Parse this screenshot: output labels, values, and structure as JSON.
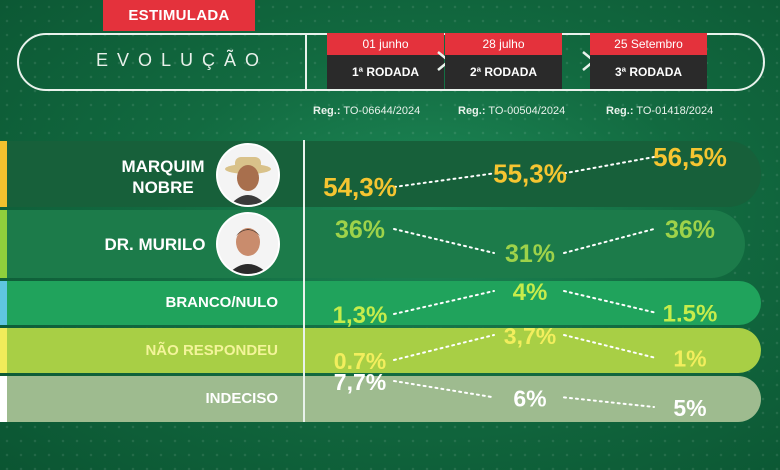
{
  "header": {
    "tag": "ESTIMULADA",
    "title": "EVOLUÇÃO"
  },
  "rounds": [
    {
      "date": "01 junho",
      "name": "1ª RODADA",
      "reg_label": "Reg.:",
      "reg_code": "TO-06644/2024"
    },
    {
      "date": "28 julho",
      "name": "2ª RODADA",
      "reg_label": "Reg.:",
      "reg_code": "TO-00504/2024"
    },
    {
      "date": "25 Setembro",
      "name": "3ª RODADA",
      "reg_label": "Reg.:",
      "reg_code": "TO-01418/2024"
    }
  ],
  "colors": {
    "tag": "#e4323c",
    "round_name_bg": "#2a2a2a",
    "marquim_value": "#f5c531",
    "murilo_value": "#9ed24a",
    "branco_value": "#c6ec4b",
    "naoresp_value": "#f2ee5d",
    "indeciso_value": "#ffffff"
  },
  "chart_data": {
    "type": "line",
    "x": [
      "01 junho",
      "28 julho",
      "25 Setembro"
    ],
    "series": [
      {
        "name": "MARQUIM NOBRE",
        "values": [
          54.3,
          55.3,
          56.5
        ],
        "labels": [
          "54,3%",
          "55,3%",
          "56,5%"
        ]
      },
      {
        "name": "DR. MURILO",
        "values": [
          36,
          31,
          36
        ],
        "labels": [
          "36%",
          "31%",
          "36%"
        ]
      },
      {
        "name": "BRANCO/NULO",
        "values": [
          1.3,
          4,
          1.5
        ],
        "labels": [
          "1,3%",
          "4%",
          "1.5%"
        ]
      },
      {
        "name": "NÃO RESPONDEU",
        "values": [
          0.7,
          3.7,
          1
        ],
        "labels": [
          "0.7%",
          "3,7%",
          "1%"
        ]
      },
      {
        "name": "INDECISO",
        "values": [
          7.7,
          6,
          5
        ],
        "labels": [
          "7,7%",
          "6%",
          "5%"
        ]
      }
    ]
  },
  "candidates": {
    "marquim_line1": "MARQUIM",
    "marquim_line2": "NOBRE",
    "murilo": "DR. MURILO",
    "branco": "BRANCO/NULO",
    "naoresp": "NÃO RESPONDEU",
    "indeciso": "INDECISO"
  }
}
